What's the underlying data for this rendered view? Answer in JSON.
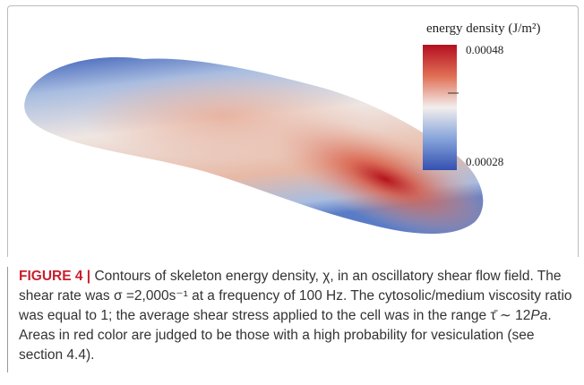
{
  "figure": {
    "colorbar": {
      "label": "energy density (J/m²)",
      "max_label": "0.00048",
      "min_label": "0.00028"
    },
    "caption": {
      "label": "FIGURE 4 |",
      "text_1": "Contours of skeleton energy density, χ, in an oscillatory shear flow field. The shear rate was σ =2,000s⁻¹ at a frequency of 100 Hz. The cytosolic/medium viscosity ratio was equal to 1; the average shear stress applied to the cell was in the range τ̄ ∼ 12",
      "italic": "Pa",
      "text_2": ". Areas in red color are judged to be those with a high probability for vesiculation (see section 4.4)."
    }
  }
}
